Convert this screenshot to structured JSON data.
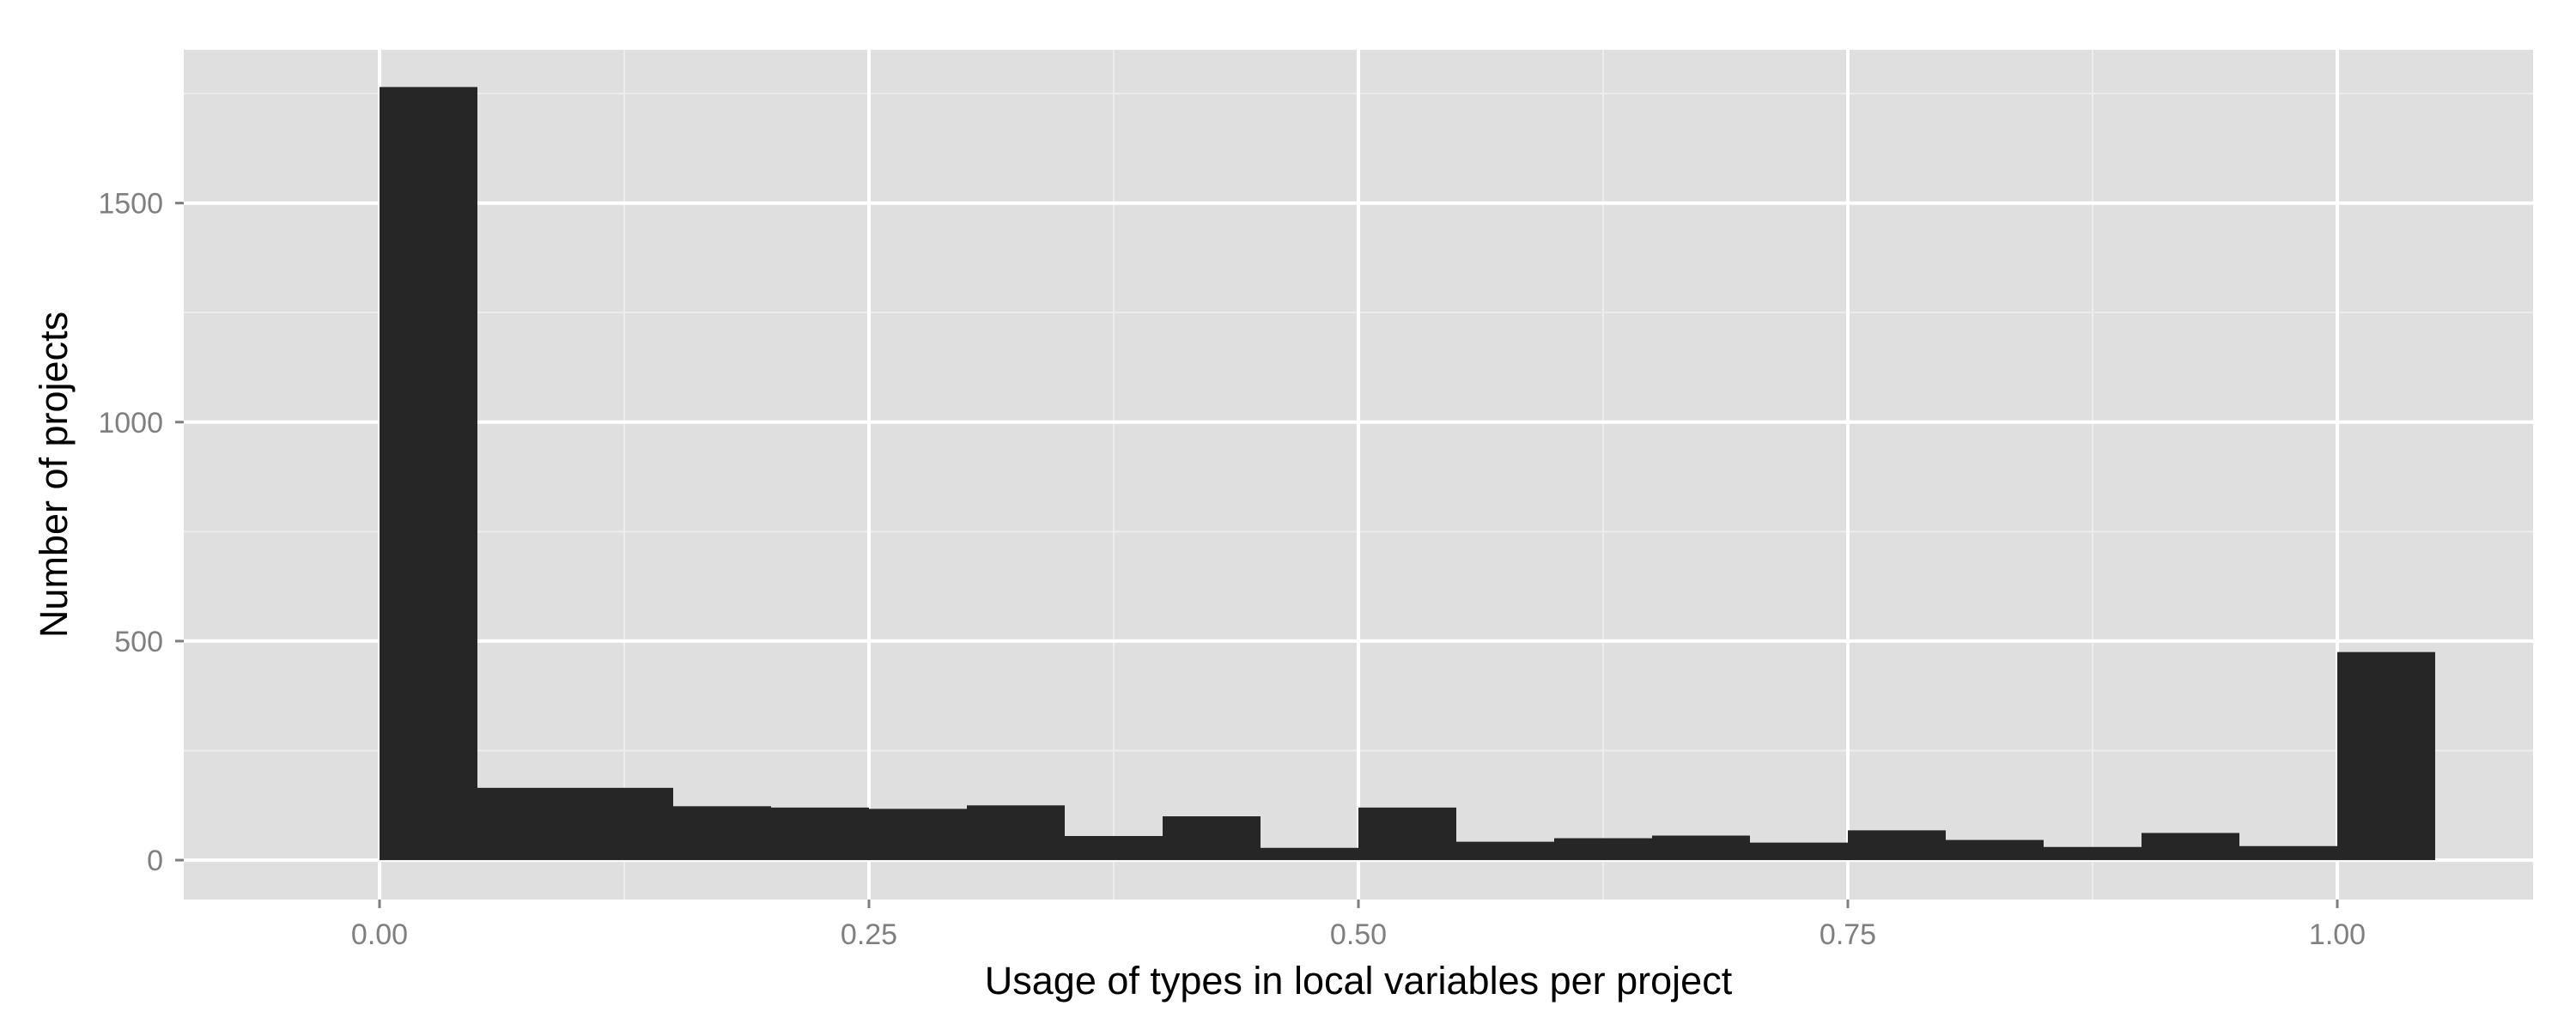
{
  "chart_data": {
    "type": "bar",
    "subtype": "histogram",
    "title": "",
    "xlabel": "Usage of types in local variables per project",
    "ylabel": "Number of projects",
    "xlim": [
      -0.1,
      1.1
    ],
    "ylim": [
      -90,
      1850
    ],
    "x_ticks": [
      0.0,
      0.25,
      0.5,
      0.75,
      1.0
    ],
    "x_tick_labels": [
      "0.00",
      "0.25",
      "0.50",
      "0.75",
      "1.00"
    ],
    "y_ticks": [
      0,
      500,
      1000,
      1500
    ],
    "y_tick_labels": [
      "0",
      "500",
      "1000",
      "1500"
    ],
    "bin_width": 0.05,
    "bins": [
      {
        "start": 0.0,
        "end": 0.05,
        "count": 1765
      },
      {
        "start": 0.05,
        "end": 0.1,
        "count": 165
      },
      {
        "start": 0.1,
        "end": 0.15,
        "count": 165
      },
      {
        "start": 0.15,
        "end": 0.2,
        "count": 123
      },
      {
        "start": 0.2,
        "end": 0.25,
        "count": 120
      },
      {
        "start": 0.25,
        "end": 0.3,
        "count": 117
      },
      {
        "start": 0.3,
        "end": 0.35,
        "count": 125
      },
      {
        "start": 0.35,
        "end": 0.4,
        "count": 55
      },
      {
        "start": 0.4,
        "end": 0.45,
        "count": 100
      },
      {
        "start": 0.45,
        "end": 0.5,
        "count": 28
      },
      {
        "start": 0.5,
        "end": 0.55,
        "count": 120
      },
      {
        "start": 0.55,
        "end": 0.6,
        "count": 42
      },
      {
        "start": 0.6,
        "end": 0.65,
        "count": 50
      },
      {
        "start": 0.65,
        "end": 0.7,
        "count": 56
      },
      {
        "start": 0.7,
        "end": 0.75,
        "count": 40
      },
      {
        "start": 0.75,
        "end": 0.8,
        "count": 68
      },
      {
        "start": 0.8,
        "end": 0.85,
        "count": 46
      },
      {
        "start": 0.85,
        "end": 0.9,
        "count": 30
      },
      {
        "start": 0.9,
        "end": 0.95,
        "count": 62
      },
      {
        "start": 0.95,
        "end": 1.0,
        "count": 32
      },
      {
        "start": 1.0,
        "end": 1.05,
        "count": 475
      }
    ],
    "grid": true,
    "legend": "none",
    "colors": {
      "panel_background": "#dfdfdf",
      "major_grid": "#ffffff",
      "minor_grid": "#ececec",
      "bar_fill": "#262626",
      "tick_label": "#7f7f7f",
      "axis_title": "#000000"
    }
  }
}
